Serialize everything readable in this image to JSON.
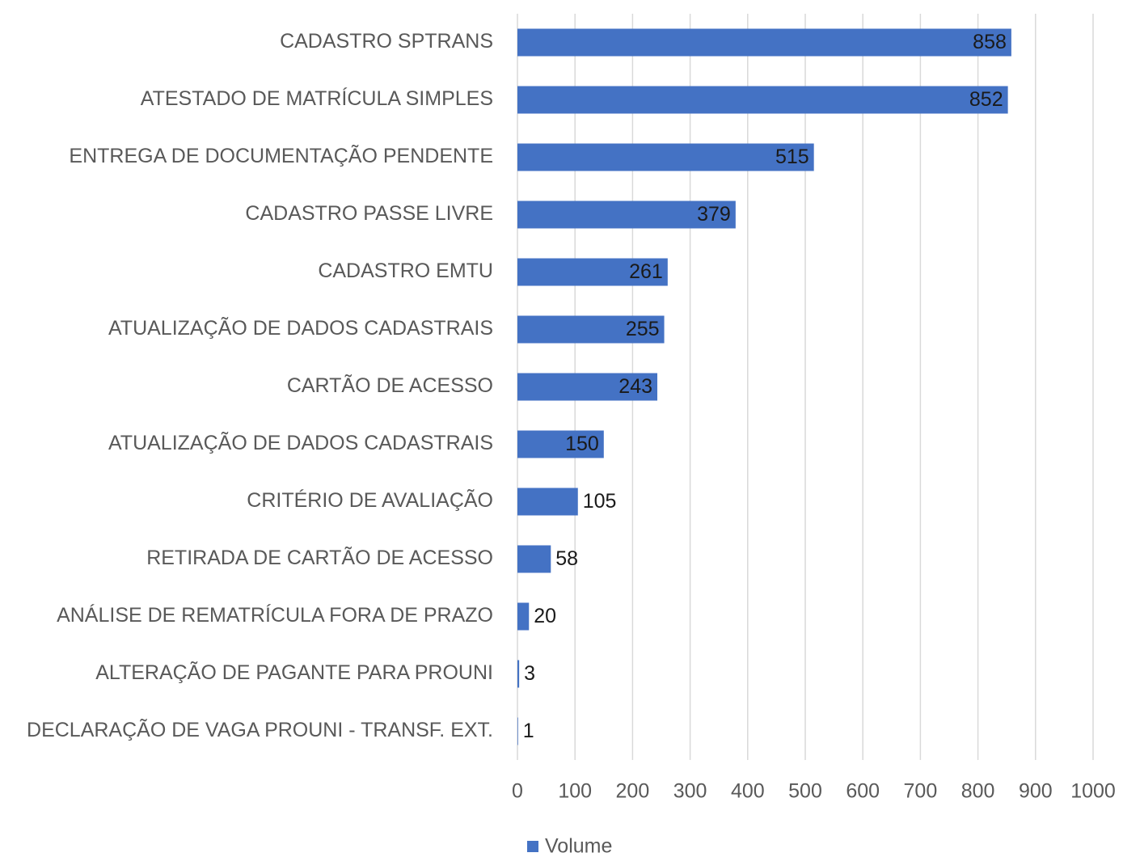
{
  "chart_data": {
    "type": "bar",
    "orientation": "horizontal",
    "categories": [
      "CADASTRO SPTRANS",
      "ATESTADO DE MATRÍCULA SIMPLES",
      "ENTREGA DE DOCUMENTAÇÃO PENDENTE",
      "CADASTRO PASSE LIVRE",
      "CADASTRO EMTU",
      "ATUALIZAÇÃO DE DADOS CADASTRAIS",
      "CARTÃO DE ACESSO",
      "ATUALIZAÇÃO DE DADOS CADASTRAIS",
      "CRITÉRIO DE AVALIAÇÃO",
      "RETIRADA DE CARTÃO DE ACESSO",
      "ANÁLISE DE REMATRÍCULA FORA DE PRAZO",
      "ALTERAÇÃO DE PAGANTE PARA PROUNI",
      "DECLARAÇÃO DE VAGA PROUNI - TRANSF. EXT."
    ],
    "series": [
      {
        "name": "Volume",
        "color": "#4472c4",
        "values": [
          858,
          852,
          515,
          379,
          261,
          255,
          243,
          150,
          105,
          58,
          20,
          3,
          1
        ]
      }
    ],
    "xlim": [
      0,
      1000
    ],
    "xticks": [
      0,
      100,
      200,
      300,
      400,
      500,
      600,
      700,
      800,
      900,
      1000
    ],
    "grid": true,
    "legend": "bottom"
  }
}
